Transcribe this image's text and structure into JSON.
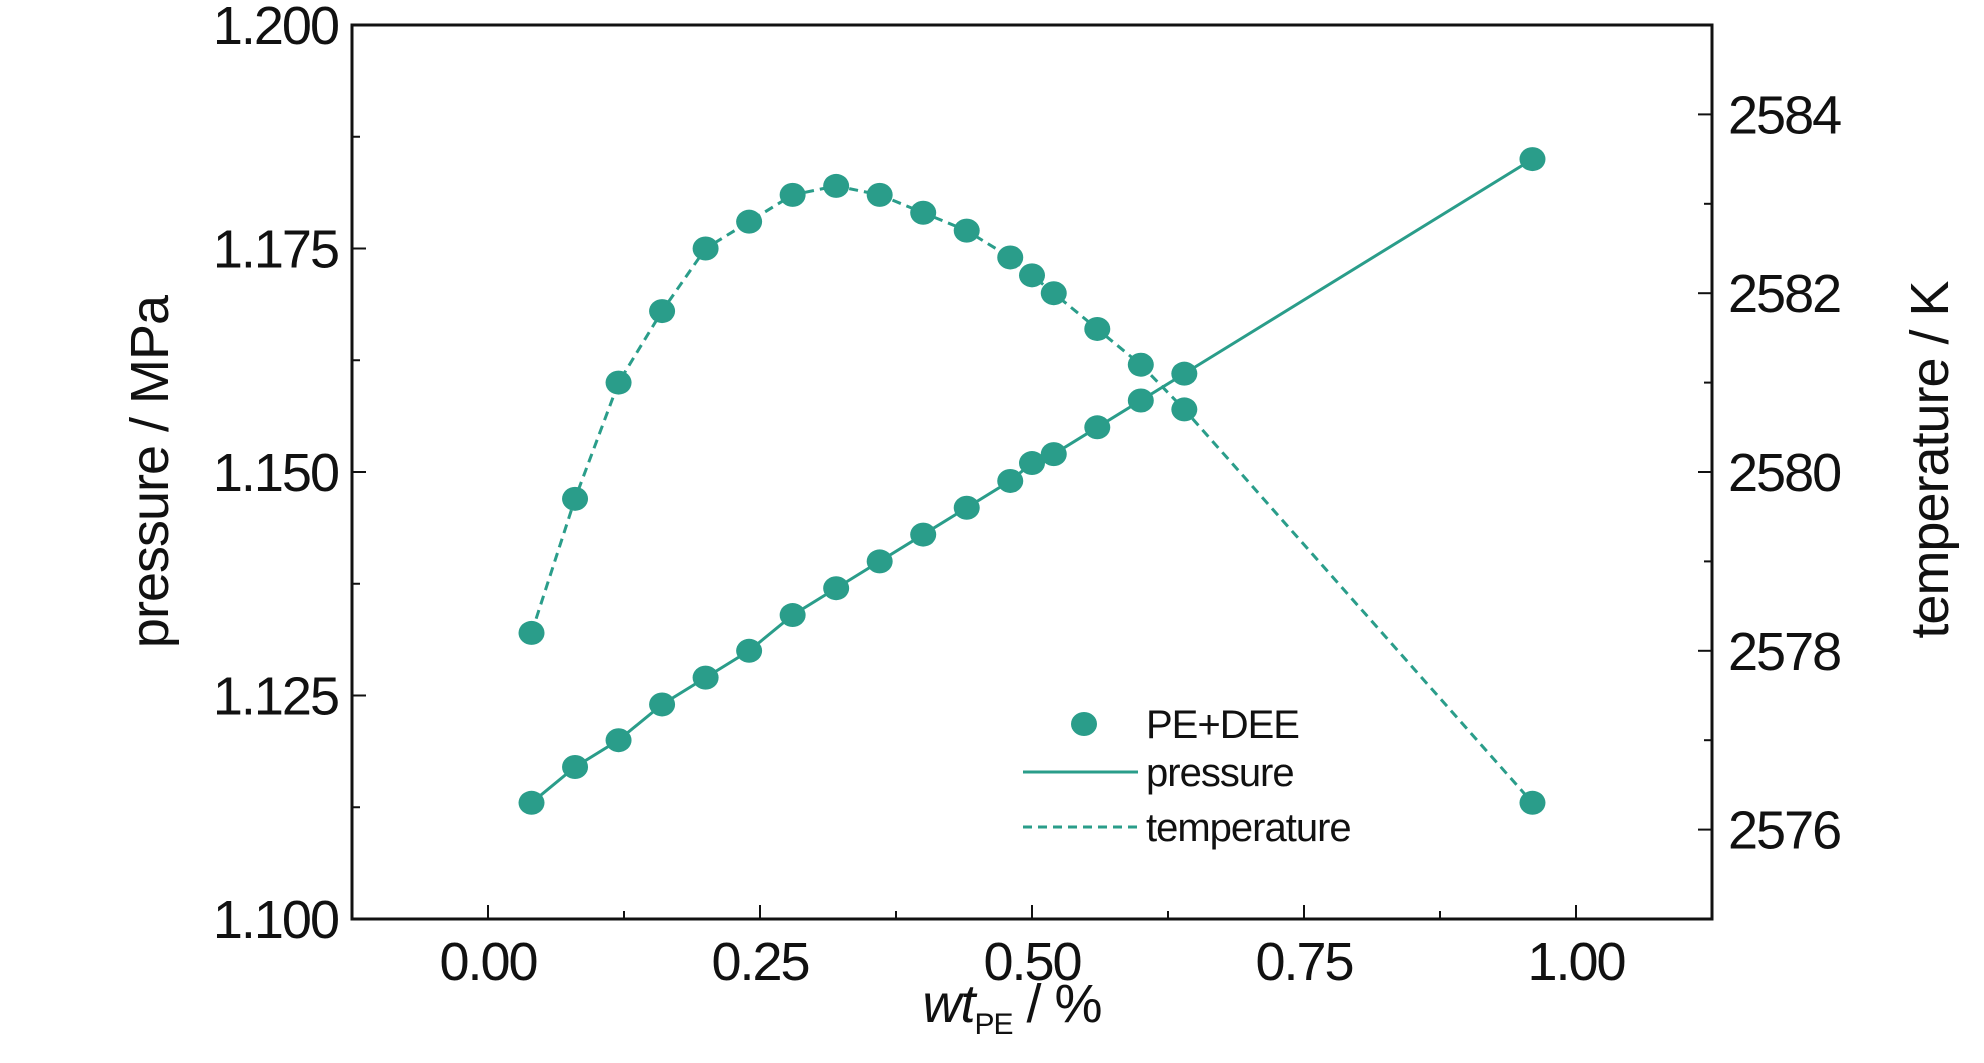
{
  "chart_data": {
    "type": "line",
    "x_label_main": "wt",
    "x_label_sub": "PE",
    "x_label_suffix": " / %",
    "ylabel_left": "pressure / MPa",
    "ylabel_right": "temperature / K",
    "x_ticks": [
      "0.00",
      "0.25",
      "0.50",
      "0.75",
      "1.00"
    ],
    "y_left_ticks": [
      "1.100",
      "1.125",
      "1.150",
      "1.175",
      "1.200"
    ],
    "y_right_ticks": [
      "2576",
      "2578",
      "2580",
      "2582",
      "2584"
    ],
    "xlim": [
      -0.125,
      1.125
    ],
    "ylim_left": [
      1.1,
      1.2
    ],
    "ylim_right": [
      2575,
      2585
    ],
    "grid": false,
    "legend_placement": "lower-right",
    "color": "#2a9d8a",
    "legend": {
      "marker_label": "PE+DEE",
      "solid_label": "pressure",
      "dashed_label": "temperature"
    },
    "series": [
      {
        "name": "pressure",
        "axis": "left",
        "line_style": "solid",
        "x": [
          0.04,
          0.08,
          0.12,
          0.16,
          0.2,
          0.24,
          0.28,
          0.32,
          0.36,
          0.4,
          0.44,
          0.48,
          0.5,
          0.52,
          0.56,
          0.6,
          0.64,
          0.96
        ],
        "y": [
          1.113,
          1.117,
          1.12,
          1.124,
          1.127,
          1.13,
          1.134,
          1.137,
          1.14,
          1.143,
          1.146,
          1.149,
          1.151,
          1.152,
          1.155,
          1.158,
          1.161,
          1.185
        ]
      },
      {
        "name": "temperature",
        "axis": "right",
        "line_style": "dashed",
        "x": [
          0.04,
          0.08,
          0.12,
          0.16,
          0.2,
          0.24,
          0.28,
          0.32,
          0.36,
          0.4,
          0.44,
          0.48,
          0.5,
          0.52,
          0.56,
          0.6,
          0.64,
          0.96
        ],
        "y": [
          2578.2,
          2579.7,
          2581.0,
          2581.8,
          2582.5,
          2582.8,
          2583.1,
          2583.2,
          2583.1,
          2582.9,
          2582.7,
          2582.4,
          2582.2,
          2582.0,
          2581.6,
          2581.2,
          2580.7,
          2576.3
        ]
      }
    ]
  }
}
